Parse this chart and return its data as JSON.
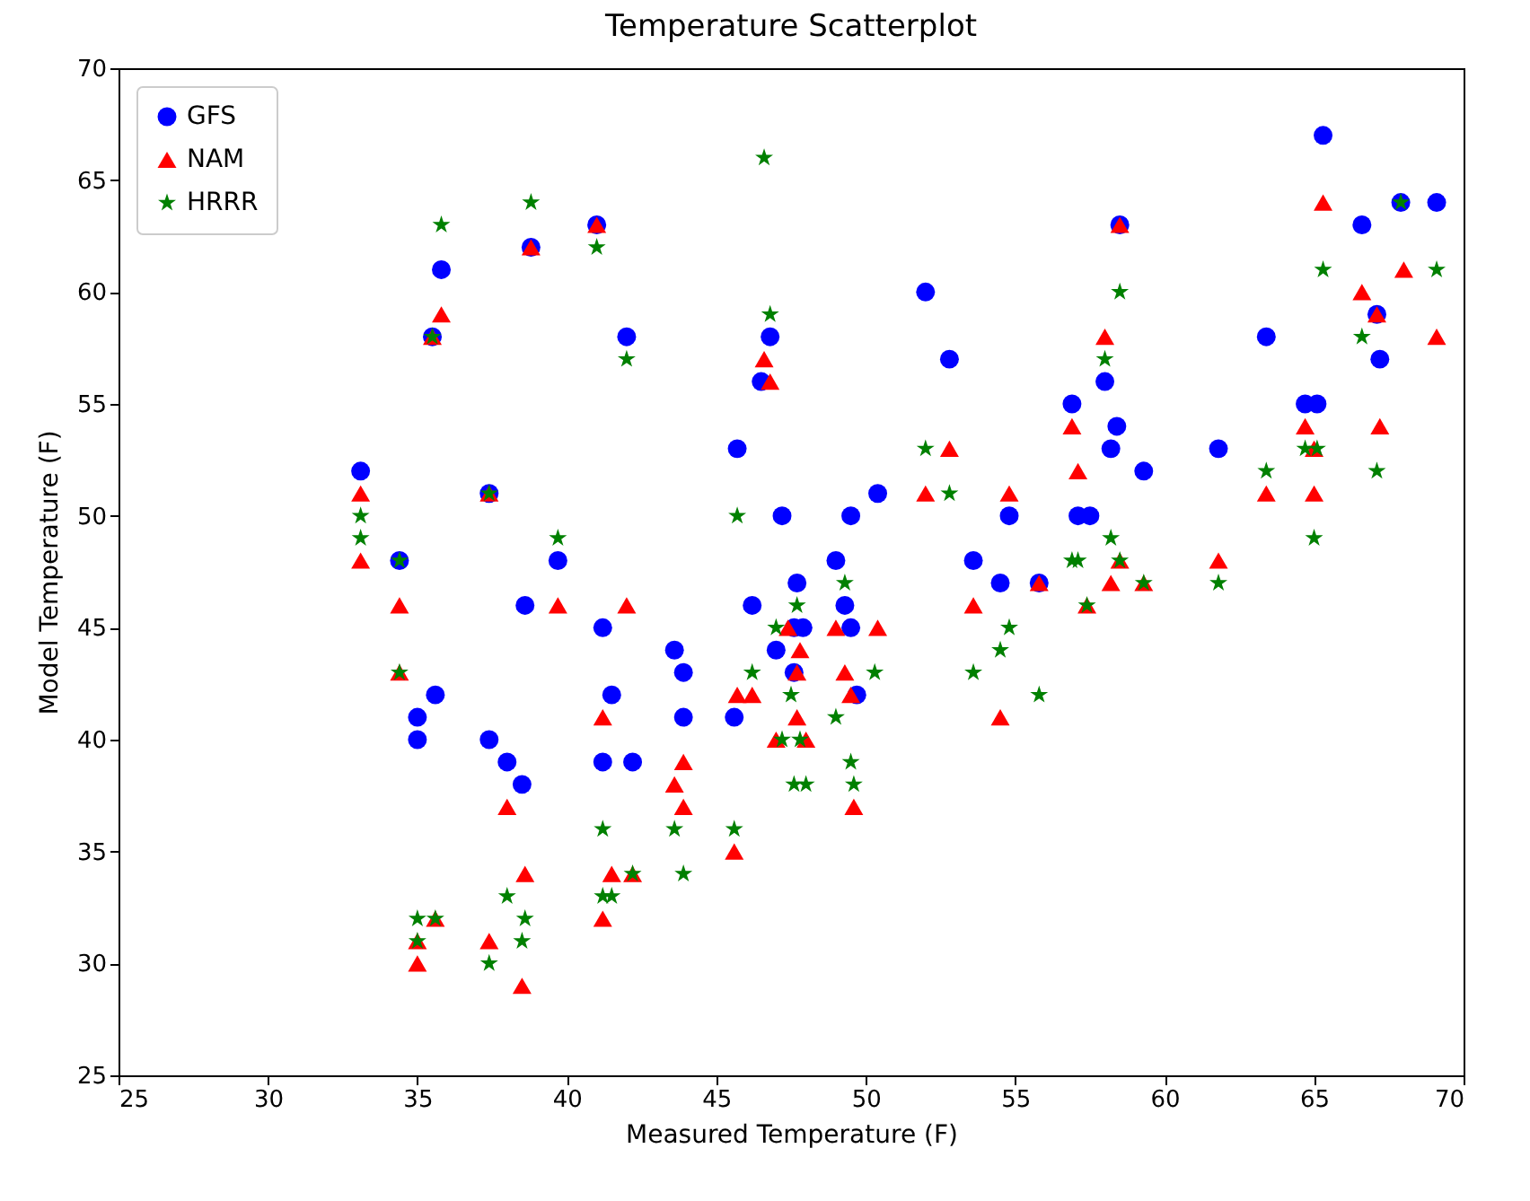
{
  "chart_data": {
    "type": "scatter",
    "title": "Temperature Scatterplot",
    "xlabel": "Measured Temperature (F)",
    "ylabel": "Model Temperature (F)",
    "xlim": [
      25,
      70
    ],
    "ylim": [
      25,
      70
    ],
    "xticks": [
      25,
      30,
      35,
      40,
      45,
      50,
      55,
      60,
      65,
      70
    ],
    "yticks": [
      25,
      30,
      35,
      40,
      45,
      50,
      55,
      60,
      65,
      70
    ],
    "grid": false,
    "legend": "top left",
    "series": [
      {
        "name": "GFS",
        "color": "#0000ff",
        "marker": "circle",
        "x": [
          33.1,
          34.4,
          35.0,
          35.0,
          35.5,
          35.6,
          35.8,
          37.4,
          37.4,
          38.0,
          38.5,
          38.6,
          38.8,
          39.7,
          41.0,
          41.2,
          41.2,
          41.5,
          42.0,
          42.2,
          43.6,
          43.9,
          43.9,
          45.6,
          45.7,
          46.2,
          46.5,
          46.8,
          47.0,
          47.2,
          47.6,
          47.7,
          47.6,
          47.9,
          49.0,
          49.3,
          49.5,
          49.5,
          49.7,
          50.4,
          52.0,
          52.8,
          53.6,
          54.5,
          54.8,
          55.8,
          56.9,
          57.1,
          57.5,
          58.0,
          58.2,
          58.4,
          58.5,
          59.3,
          61.8,
          63.4,
          64.7,
          65.1,
          65.3,
          66.6,
          67.1,
          67.2,
          67.9,
          69.1
        ],
        "values": [
          52,
          48,
          41,
          40,
          58,
          42,
          61,
          40,
          51,
          39,
          38,
          46,
          62,
          48,
          63,
          45,
          39,
          42,
          58,
          39,
          44,
          43,
          41,
          41,
          53,
          46,
          56,
          58,
          44,
          50,
          43,
          47,
          45,
          45,
          48,
          46,
          45,
          50,
          42,
          51,
          60,
          57,
          48,
          47,
          50,
          47,
          55,
          50,
          50,
          56,
          53,
          54,
          63,
          52,
          53,
          58,
          55,
          55,
          67,
          63,
          59,
          57,
          64,
          64
        ]
      },
      {
        "name": "NAM",
        "color": "#ff0000",
        "marker": "triangle",
        "x": [
          33.1,
          33.1,
          34.4,
          34.4,
          35.0,
          35.0,
          35.5,
          35.6,
          35.8,
          37.4,
          37.4,
          38.0,
          38.5,
          38.6,
          38.8,
          39.7,
          41.0,
          41.2,
          41.2,
          41.5,
          42.0,
          42.2,
          43.6,
          43.9,
          43.9,
          45.6,
          45.7,
          46.2,
          46.6,
          46.8,
          47.0,
          47.4,
          47.7,
          47.7,
          47.8,
          48.0,
          49.0,
          49.3,
          49.5,
          49.6,
          50.4,
          52.0,
          52.8,
          53.6,
          54.5,
          54.8,
          55.8,
          56.9,
          57.1,
          57.4,
          58.0,
          58.2,
          58.5,
          58.5,
          59.3,
          61.8,
          63.4,
          64.7,
          65.0,
          65.0,
          65.3,
          66.6,
          67.1,
          67.2,
          68.0,
          69.1
        ],
        "values": [
          51,
          48,
          46,
          43,
          31,
          30,
          58,
          32,
          59,
          51,
          31,
          37,
          29,
          34,
          62,
          46,
          63,
          41,
          32,
          34,
          46,
          34,
          38,
          39,
          37,
          35,
          42,
          42,
          57,
          56,
          40,
          45,
          43,
          41,
          44,
          40,
          45,
          43,
          42,
          37,
          45,
          51,
          53,
          46,
          41,
          51,
          47,
          54,
          52,
          46,
          58,
          47,
          48,
          63,
          47,
          48,
          51,
          54,
          53,
          51,
          64,
          60,
          59,
          54,
          61,
          58
        ]
      },
      {
        "name": "HRRR",
        "color": "#008000",
        "marker": "star",
        "x": [
          33.1,
          33.1,
          34.4,
          34.4,
          35.0,
          35.0,
          35.5,
          35.6,
          35.8,
          37.4,
          37.4,
          38.0,
          38.5,
          38.6,
          38.8,
          39.7,
          41.0,
          41.2,
          41.2,
          41.5,
          42.0,
          42.2,
          43.6,
          43.9,
          45.6,
          45.7,
          46.2,
          46.6,
          46.8,
          47.0,
          47.2,
          47.5,
          47.6,
          47.7,
          47.8,
          48.0,
          49.0,
          49.3,
          49.5,
          49.6,
          50.3,
          52.0,
          52.8,
          53.6,
          54.5,
          54.8,
          55.8,
          56.9,
          57.1,
          57.4,
          58.0,
          58.2,
          58.5,
          58.5,
          59.3,
          61.8,
          63.4,
          64.7,
          65.0,
          65.1,
          65.3,
          66.6,
          67.1,
          67.9,
          69.1
        ],
        "values": [
          50,
          49,
          48,
          43,
          32,
          31,
          58,
          32,
          63,
          51,
          30,
          33,
          31,
          32,
          64,
          49,
          62,
          36,
          33,
          33,
          57,
          34,
          36,
          34,
          36,
          50,
          43,
          66,
          59,
          45,
          40,
          42,
          38,
          46,
          40,
          38,
          41,
          47,
          39,
          38,
          43,
          53,
          51,
          43,
          44,
          45,
          42,
          48,
          48,
          46,
          57,
          49,
          48,
          60,
          47,
          47,
          52,
          53,
          49,
          53,
          61,
          58,
          52,
          64,
          61
        ]
      }
    ]
  }
}
